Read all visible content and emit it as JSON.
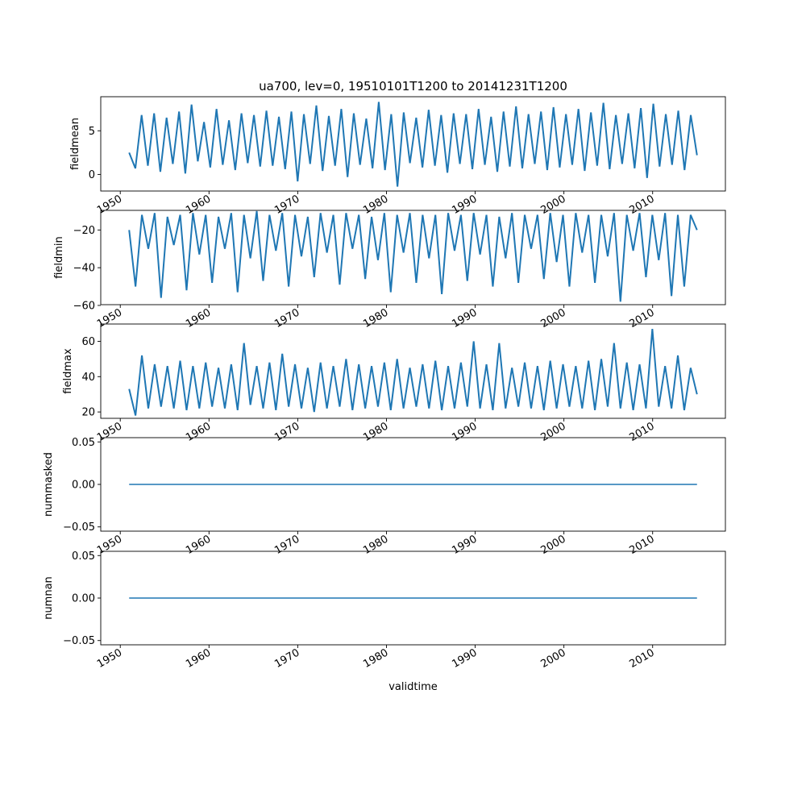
{
  "chart_data": [
    {
      "type": "line",
      "title": "ua700, lev=0, 19510101T1200 to 20141231T1200",
      "ylabel": "fieldmean",
      "xlabel": "",
      "x_range": [
        "1951-01-01",
        "2014-12-31"
      ],
      "xlim": [
        1947.8,
        2018.2
      ],
      "ylim": [
        -1.9,
        8.9
      ],
      "yticks": [
        "0",
        "5"
      ],
      "ytick_values": [
        0,
        5
      ],
      "xticks": [
        "1950",
        "1960",
        "1970",
        "1980",
        "1990",
        "2000",
        "2010"
      ],
      "xtick_values": [
        1950,
        1960,
        1970,
        1980,
        1990,
        2000,
        2010
      ],
      "grid": false,
      "color": "#1f77b4",
      "series": [
        {
          "description_of_values": "daily values",
          "values": [
            2.5,
            0.7,
            6.8,
            1.0,
            7.0,
            0.3,
            6.5,
            1.2,
            7.2,
            0.1,
            8.0,
            1.5,
            6.0,
            0.8,
            7.5,
            1.1,
            6.2,
            0.5,
            7.0,
            1.3,
            6.8,
            0.9,
            7.3,
            1.0,
            6.6,
            0.6,
            7.2,
            -0.8,
            6.9,
            1.2,
            7.9,
            0.4,
            6.7,
            1.0,
            7.5,
            -0.3,
            7.0,
            1.1,
            6.4,
            0.7,
            8.3,
            0.5,
            6.9,
            -1.4,
            7.1,
            1.3,
            6.5,
            0.8,
            7.4,
            1.0,
            6.8,
            0.2,
            7.0,
            1.2,
            6.9,
            0.6,
            7.5,
            1.1,
            6.6,
            0.3,
            7.2,
            0.9,
            7.8,
            0.7,
            6.9,
            1.2,
            7.2,
            0.5,
            7.7,
            0.8,
            6.9,
            1.1,
            7.5,
            0.4,
            7.1,
            1.0,
            8.2,
            0.6,
            6.8,
            1.2,
            7.0,
            0.7,
            7.6,
            -0.4,
            8.1,
            0.9,
            6.9,
            1.1,
            7.3,
            0.5,
            6.8,
            2.2
          ]
        }
      ]
    },
    {
      "type": "line",
      "ylabel": "fieldmin",
      "xlabel": "",
      "xlim": [
        1947.8,
        2018.2
      ],
      "ylim": [
        -59.6,
        -9.6
      ],
      "yticks": [
        "−60",
        "−40",
        "−20"
      ],
      "ytick_values": [
        -60,
        -40,
        -20
      ],
      "xticks": [
        "1950",
        "1960",
        "1970",
        "1980",
        "1990",
        "2000",
        "2010"
      ],
      "xtick_values": [
        1950,
        1960,
        1970,
        1980,
        1990,
        2000,
        2010
      ],
      "grid": false,
      "color": "#1f77b4",
      "series": [
        {
          "description_of_values": "daily values",
          "values": [
            -20,
            -50,
            -12,
            -30,
            -11,
            -56,
            -13,
            -28,
            -12,
            -52,
            -11,
            -33,
            -12,
            -48,
            -13,
            -30,
            -11,
            -53,
            -12,
            -35,
            -10,
            -47,
            -12,
            -31,
            -11,
            -50,
            -12,
            -34,
            -13,
            -45,
            -11,
            -32,
            -12,
            -49,
            -11,
            -30,
            -12,
            -46,
            -13,
            -36,
            -11,
            -53,
            -12,
            -32,
            -11,
            -48,
            -12,
            -35,
            -12,
            -54,
            -11,
            -31,
            -12,
            -47,
            -11,
            -33,
            -12,
            -50,
            -13,
            -35,
            -11,
            -48,
            -12,
            -30,
            -12,
            -46,
            -11,
            -37,
            -12,
            -50,
            -11,
            -32,
            -12,
            -48,
            -12,
            -34,
            -11,
            -58,
            -12,
            -31,
            -11,
            -45,
            -12,
            -36,
            -11,
            -55,
            -12,
            -50,
            -12,
            -20
          ]
        }
      ]
    },
    {
      "type": "line",
      "ylabel": "fieldmax",
      "xlabel": "",
      "xlim": [
        1947.8,
        2018.2
      ],
      "ylim": [
        16.4,
        69.8
      ],
      "yticks": [
        "20",
        "40",
        "60"
      ],
      "ytick_values": [
        20,
        40,
        60
      ],
      "xticks": [
        "1950",
        "1960",
        "1970",
        "1980",
        "1990",
        "2000",
        "2010"
      ],
      "xtick_values": [
        1950,
        1960,
        1970,
        1980,
        1990,
        2000,
        2010
      ],
      "grid": false,
      "color": "#1f77b4",
      "series": [
        {
          "description_of_values": "daily values",
          "values": [
            33,
            18,
            52,
            22,
            47,
            23,
            46,
            22,
            49,
            21,
            46,
            22,
            48,
            23,
            45,
            22,
            47,
            21,
            59,
            24,
            46,
            22,
            48,
            21,
            53,
            23,
            47,
            22,
            45,
            20,
            48,
            22,
            46,
            23,
            50,
            21,
            47,
            22,
            46,
            23,
            48,
            21,
            50,
            22,
            45,
            23,
            47,
            22,
            49,
            21,
            46,
            22,
            48,
            23,
            60,
            22,
            47,
            21,
            59,
            22,
            45,
            23,
            48,
            22,
            46,
            21,
            49,
            22,
            47,
            23,
            46,
            22,
            49,
            21,
            50,
            23,
            59,
            22,
            48,
            21,
            47,
            22,
            67,
            23,
            46,
            22,
            52,
            21,
            45,
            30
          ]
        }
      ]
    },
    {
      "type": "line",
      "ylabel": "nummasked",
      "xlabel": "",
      "xlim": [
        1947.8,
        2018.2
      ],
      "ylim": [
        -0.055,
        0.055
      ],
      "yticks": [
        "−0.05",
        "0.00",
        "0.05"
      ],
      "ytick_values": [
        -0.05,
        0,
        0.05
      ],
      "xticks": [
        "1950",
        "1960",
        "1970",
        "1980",
        "1990",
        "2000",
        "2010"
      ],
      "xtick_values": [
        1950,
        1960,
        1970,
        1980,
        1990,
        2000,
        2010
      ],
      "grid": false,
      "color": "#1f77b4",
      "series": [
        {
          "description_of_values": "constant",
          "values": [
            0,
            0
          ]
        }
      ]
    },
    {
      "type": "line",
      "ylabel": "numnan",
      "xlabel": "validtime",
      "xlim": [
        1947.8,
        2018.2
      ],
      "ylim": [
        -0.055,
        0.055
      ],
      "yticks": [
        "−0.05",
        "0.00",
        "0.05"
      ],
      "ytick_values": [
        -0.05,
        0,
        0.05
      ],
      "xticks": [
        "1950",
        "1960",
        "1970",
        "1980",
        "1990",
        "2000",
        "2010"
      ],
      "xtick_values": [
        1950,
        1960,
        1970,
        1980,
        1990,
        2000,
        2010
      ],
      "grid": false,
      "color": "#1f77b4",
      "series": [
        {
          "description_of_values": "constant",
          "values": [
            0,
            0
          ]
        }
      ]
    }
  ]
}
